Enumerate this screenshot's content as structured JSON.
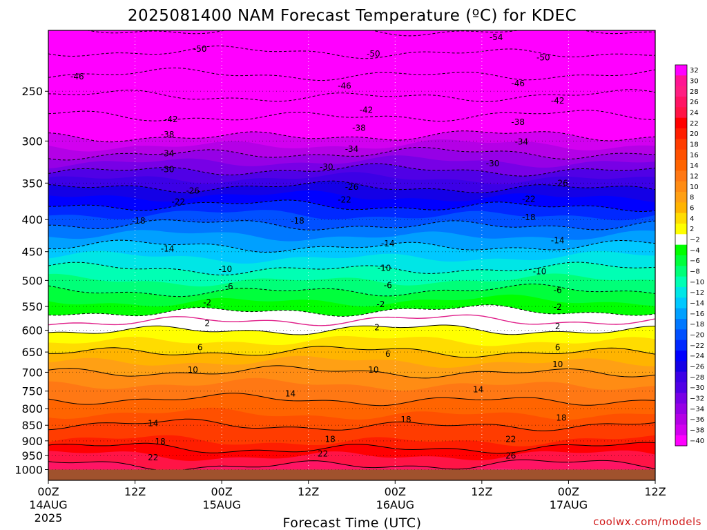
{
  "chart_data": {
    "type": "heatmap",
    "title": "2025081400 NAM Forecast Temperature (ºC) for KDEC",
    "xlabel": "Forecast Time (UTC)",
    "ylabel": "",
    "credit": "coolwx.com/models",
    "x_hours": [
      0,
      84
    ],
    "y_pressure": [
      1040,
      200
    ],
    "y_scale": "log",
    "surface_pressure": 1000,
    "surface_color": "#a0522d",
    "x_ticks": [
      {
        "hour": 0,
        "label": "00Z",
        "sub": "14AUG",
        "sub2": "2025"
      },
      {
        "hour": 12,
        "label": "12Z",
        "sub": "",
        "sub2": ""
      },
      {
        "hour": 24,
        "label": "00Z",
        "sub": "15AUG",
        "sub2": ""
      },
      {
        "hour": 36,
        "label": "12Z",
        "sub": "",
        "sub2": ""
      },
      {
        "hour": 48,
        "label": "00Z",
        "sub": "16AUG",
        "sub2": ""
      },
      {
        "hour": 60,
        "label": "12Z",
        "sub": "",
        "sub2": ""
      },
      {
        "hour": 72,
        "label": "00Z",
        "sub": "17AUG",
        "sub2": ""
      },
      {
        "hour": 84,
        "label": "12Z",
        "sub": "",
        "sub2": ""
      }
    ],
    "y_ticks": [
      250,
      300,
      350,
      400,
      450,
      500,
      550,
      600,
      650,
      700,
      750,
      800,
      850,
      900,
      950,
      1000
    ],
    "colorbar": {
      "labels": [
        "32",
        "30",
        "28",
        "26",
        "24",
        "22",
        "20",
        "18",
        "16",
        "14",
        "12",
        "10",
        "8",
        "6",
        "4",
        "2",
        "−2",
        "−4",
        "−6",
        "−8",
        "−10",
        "−12",
        "−14",
        "−16",
        "−18",
        "−20",
        "−22",
        "−24",
        "−26",
        "−28",
        "−30",
        "−32",
        "−34",
        "−36",
        "−38",
        "−40"
      ],
      "colors": [
        "#ff00ff",
        "#ff1493",
        "#ff1e82",
        "#ff1464",
        "#ff1446",
        "#ff0000",
        "#ff1e00",
        "#ff3c00",
        "#ff5000",
        "#ff6400",
        "#ff7814",
        "#ff8c14",
        "#ffa014",
        "#ffb400",
        "#ffdc00",
        "#ffff00",
        "#ffffff",
        "#00ff00",
        "#00ff3c",
        "#00ff78",
        "#00ffb4",
        "#00e6e6",
        "#00c8ff",
        "#00a0ff",
        "#0078ff",
        "#0050ff",
        "#0028ff",
        "#0000ff",
        "#1400e6",
        "#3c00e6",
        "#5000e6",
        "#7800e6",
        "#9600e6",
        "#b400e6",
        "#d200f0",
        "#ff00ff"
      ]
    },
    "levels": [
      {
        "p": 200,
        "t": -58
      },
      {
        "p": 250,
        "t": -47
      },
      {
        "p": 300,
        "t": -37
      },
      {
        "p": 350,
        "t": -27
      },
      {
        "p": 400,
        "t": -19
      },
      {
        "p": 450,
        "t": -13
      },
      {
        "p": 500,
        "t": -8
      },
      {
        "p": 550,
        "t": -3
      },
      {
        "p": 600,
        "t": 2
      },
      {
        "p": 650,
        "t": 6
      },
      {
        "p": 700,
        "t": 10
      },
      {
        "p": 750,
        "t": 13
      },
      {
        "p": 800,
        "t": 15
      },
      {
        "p": 850,
        "t": 18
      },
      {
        "p": 900,
        "t": 20
      },
      {
        "p": 950,
        "t": 24
      },
      {
        "p": 1000,
        "t": 27
      }
    ],
    "contour_labels": [
      {
        "text": "-54",
        "hour": 62,
        "p": 205
      },
      {
        "text": "-50",
        "hour": 21,
        "p": 214
      },
      {
        "text": "-50",
        "hour": 45,
        "p": 218
      },
      {
        "text": "-50",
        "hour": 68.5,
        "p": 221
      },
      {
        "text": "-46",
        "hour": 4,
        "p": 237
      },
      {
        "text": "-46",
        "hour": 41,
        "p": 245
      },
      {
        "text": "-46",
        "hour": 65,
        "p": 243
      },
      {
        "text": "-42",
        "hour": 17,
        "p": 277
      },
      {
        "text": "-42",
        "hour": 44,
        "p": 268
      },
      {
        "text": "-42",
        "hour": 70.5,
        "p": 259
      },
      {
        "text": "-38",
        "hour": 16.5,
        "p": 293
      },
      {
        "text": "-38",
        "hour": 43,
        "p": 286
      },
      {
        "text": "-38",
        "hour": 65,
        "p": 280
      },
      {
        "text": "-34",
        "hour": 16.5,
        "p": 314
      },
      {
        "text": "-34",
        "hour": 42,
        "p": 309
      },
      {
        "text": "-34",
        "hour": 65.5,
        "p": 301
      },
      {
        "text": "-30",
        "hour": 16.5,
        "p": 333
      },
      {
        "text": "-30",
        "hour": 38.5,
        "p": 330
      },
      {
        "text": "-30",
        "hour": 61.5,
        "p": 326
      },
      {
        "text": "-26",
        "hour": 20,
        "p": 360
      },
      {
        "text": "-26",
        "hour": 42,
        "p": 355
      },
      {
        "text": "-26",
        "hour": 71,
        "p": 350
      },
      {
        "text": "-22",
        "hour": 18,
        "p": 375
      },
      {
        "text": "-22",
        "hour": 41,
        "p": 372
      },
      {
        "text": "-22",
        "hour": 66.5,
        "p": 371
      },
      {
        "text": "-18",
        "hour": 12.5,
        "p": 402
      },
      {
        "text": "-18",
        "hour": 34.5,
        "p": 402
      },
      {
        "text": "-18",
        "hour": 66.5,
        "p": 397
      },
      {
        "text": "-14",
        "hour": 16.5,
        "p": 445
      },
      {
        "text": "-14",
        "hour": 47,
        "p": 437
      },
      {
        "text": "-14",
        "hour": 70.5,
        "p": 432
      },
      {
        "text": "-10",
        "hour": 24.5,
        "p": 480
      },
      {
        "text": "-10",
        "hour": 46.5,
        "p": 478
      },
      {
        "text": "-10",
        "hour": 68,
        "p": 484
      },
      {
        "text": "-6",
        "hour": 25,
        "p": 511
      },
      {
        "text": "-6",
        "hour": 47,
        "p": 509
      },
      {
        "text": "-6",
        "hour": 70.5,
        "p": 518
      },
      {
        "text": "-2",
        "hour": 22,
        "p": 542
      },
      {
        "text": "-2",
        "hour": 46,
        "p": 546
      },
      {
        "text": "-2",
        "hour": 70.5,
        "p": 551
      },
      {
        "text": "2",
        "hour": 22,
        "p": 585
      },
      {
        "text": "2",
        "hour": 45.5,
        "p": 594
      },
      {
        "text": "2",
        "hour": 70.5,
        "p": 592
      },
      {
        "text": "6",
        "hour": 21,
        "p": 639
      },
      {
        "text": "6",
        "hour": 47,
        "p": 655
      },
      {
        "text": "6",
        "hour": 70.5,
        "p": 639
      },
      {
        "text": "10",
        "hour": 20,
        "p": 694
      },
      {
        "text": "10",
        "hour": 45,
        "p": 694
      },
      {
        "text": "10",
        "hour": 70.5,
        "p": 680
      },
      {
        "text": "14",
        "hour": 33.5,
        "p": 757
      },
      {
        "text": "14",
        "hour": 59.5,
        "p": 746
      },
      {
        "text": "14",
        "hour": 14.5,
        "p": 844
      },
      {
        "text": "18",
        "hour": 49.5,
        "p": 832
      },
      {
        "text": "18",
        "hour": 71,
        "p": 827
      },
      {
        "text": "18",
        "hour": 15.5,
        "p": 903
      },
      {
        "text": "18",
        "hour": 39,
        "p": 895
      },
      {
        "text": "22",
        "hour": 14.5,
        "p": 957
      },
      {
        "text": "22",
        "hour": 38,
        "p": 944
      },
      {
        "text": "22",
        "hour": 64,
        "p": 895
      },
      {
        "text": "26",
        "hour": 64,
        "p": 951
      }
    ]
  }
}
